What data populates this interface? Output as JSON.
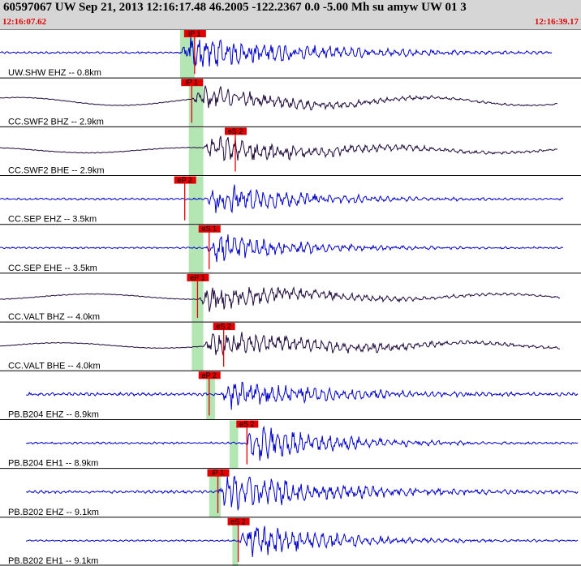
{
  "header": {
    "title": "60597067 UW Sep 21, 2013 12:16:17.48   46.2005 -122.2367  0.0 -5.00 Mh su amyw UW 01   3",
    "start_time": "12:16:07.62",
    "end_time": "12:16:39.17"
  },
  "colors": {
    "header_bg": "#d6d6d6",
    "time_text": "#e00000",
    "pick": "#e00000",
    "window": "#b4e6b4",
    "trace_blue": "#0000cc",
    "trace_dark": "#1e0a3c"
  },
  "chart_data": {
    "type": "line",
    "title": "60597067 UW Sep 21, 2013 12:16:17.48   46.2005 -122.2367  0.0 -5.00 Mh su amyw UW 01   3",
    "x_range": [
      "12:16:07.62",
      "12:16:39.17"
    ],
    "series": [
      {
        "name": "UW.SHW EHZ -- 0.8km",
        "color": "#0000cc",
        "trace_start": 0.0,
        "trace_end": 0.95,
        "onset": 0.31,
        "noise": 0.05,
        "amp": 0.8,
        "decay": 0.22,
        "drift": 0.0,
        "window": [
          0.31,
          0.335
        ],
        "picks": [
          {
            "label": "iP 1",
            "x": 0.335
          }
        ]
      },
      {
        "name": "CC.SWF2 BHZ -- 2.9km",
        "color": "#1e0a3c",
        "trace_start": 0.0,
        "trace_end": 0.96,
        "onset": 0.33,
        "noise": 0.02,
        "amp": 0.55,
        "decay": 0.2,
        "drift": 0.18,
        "window": [
          0.325,
          0.35
        ],
        "picks": [
          {
            "label": "iP 1",
            "x": 0.33
          }
        ]
      },
      {
        "name": "CC.SWF2 BHE -- 2.9km",
        "color": "#1e0a3c",
        "trace_start": 0.0,
        "trace_end": 0.96,
        "onset": 0.35,
        "noise": 0.02,
        "amp": 0.6,
        "decay": 0.22,
        "drift": 0.12,
        "window": [
          0.325,
          0.35
        ],
        "picks": [
          {
            "label": "eS 2",
            "x": 0.405
          }
        ]
      },
      {
        "name": "CC.SEP EHZ -- 3.5km",
        "color": "#0000cc",
        "trace_start": 0.0,
        "trace_end": 0.97,
        "onset": 0.355,
        "noise": 0.05,
        "amp": 0.8,
        "decay": 0.15,
        "drift": 0.0,
        "window": [
          0.325,
          0.35
        ],
        "picks": [
          {
            "label": "eP 2",
            "x": 0.318
          }
        ]
      },
      {
        "name": "CC.SEP EHE -- 3.5km",
        "color": "#0000cc",
        "trace_start": 0.0,
        "trace_end": 0.97,
        "onset": 0.355,
        "noise": 0.04,
        "amp": 0.7,
        "decay": 0.15,
        "drift": 0.0,
        "window": [
          0.325,
          0.35
        ],
        "picks": [
          {
            "label": "eS 1",
            "x": 0.36
          }
        ]
      },
      {
        "name": "CC.VALT BHZ -- 4.0km",
        "color": "#1e0a3c",
        "trace_start": 0.0,
        "trace_end": 0.965,
        "onset": 0.34,
        "noise": 0.02,
        "amp": 0.55,
        "decay": 0.22,
        "drift": 0.12,
        "window": [
          0.33,
          0.35
        ],
        "picks": [
          {
            "label": "eP 1",
            "x": 0.34
          }
        ]
      },
      {
        "name": "CC.VALT BHE -- 4.0km",
        "color": "#1e0a3c",
        "trace_start": 0.0,
        "trace_end": 0.965,
        "onset": 0.35,
        "noise": 0.02,
        "amp": 0.6,
        "decay": 0.25,
        "drift": 0.12,
        "window": [
          0.33,
          0.35
        ],
        "picks": [
          {
            "label": "eS 2",
            "x": 0.385
          }
        ]
      },
      {
        "name": "PB.B204 EHZ -- 8.9km",
        "color": "#0000cc",
        "trace_start": 0.045,
        "trace_end": 0.995,
        "onset": 0.38,
        "noise": 0.08,
        "amp": 0.6,
        "decay": 0.2,
        "drift": 0.0,
        "window": [
          0.355,
          0.37
        ],
        "picks": [
          {
            "label": "eP 2",
            "x": 0.36
          }
        ]
      },
      {
        "name": "PB.B204 EH1 -- 8.9km",
        "color": "#0000cc",
        "trace_start": 0.045,
        "trace_end": 0.995,
        "onset": 0.42,
        "noise": 0.05,
        "amp": 0.9,
        "decay": 0.15,
        "drift": 0.0,
        "window": [
          0.395,
          0.41
        ],
        "picks": [
          {
            "label": "eS 2",
            "x": 0.425
          }
        ]
      },
      {
        "name": "PB.B202 EHZ -- 9.1km",
        "color": "#0000cc",
        "trace_start": 0.045,
        "trace_end": 0.995,
        "onset": 0.375,
        "noise": 0.07,
        "amp": 0.9,
        "decay": 0.2,
        "drift": 0.0,
        "window": [
          0.36,
          0.38
        ],
        "picks": [
          {
            "label": "iP 1",
            "x": 0.375
          }
        ]
      },
      {
        "name": "PB.B202 EH1 -- 9.1km",
        "color": "#0000cc",
        "trace_start": 0.045,
        "trace_end": 0.995,
        "onset": 0.41,
        "noise": 0.04,
        "amp": 0.9,
        "decay": 0.15,
        "drift": 0.0,
        "window": [
          0.4,
          0.41
        ],
        "picks": [
          {
            "label": "eS 2",
            "x": 0.41
          }
        ]
      }
    ]
  }
}
